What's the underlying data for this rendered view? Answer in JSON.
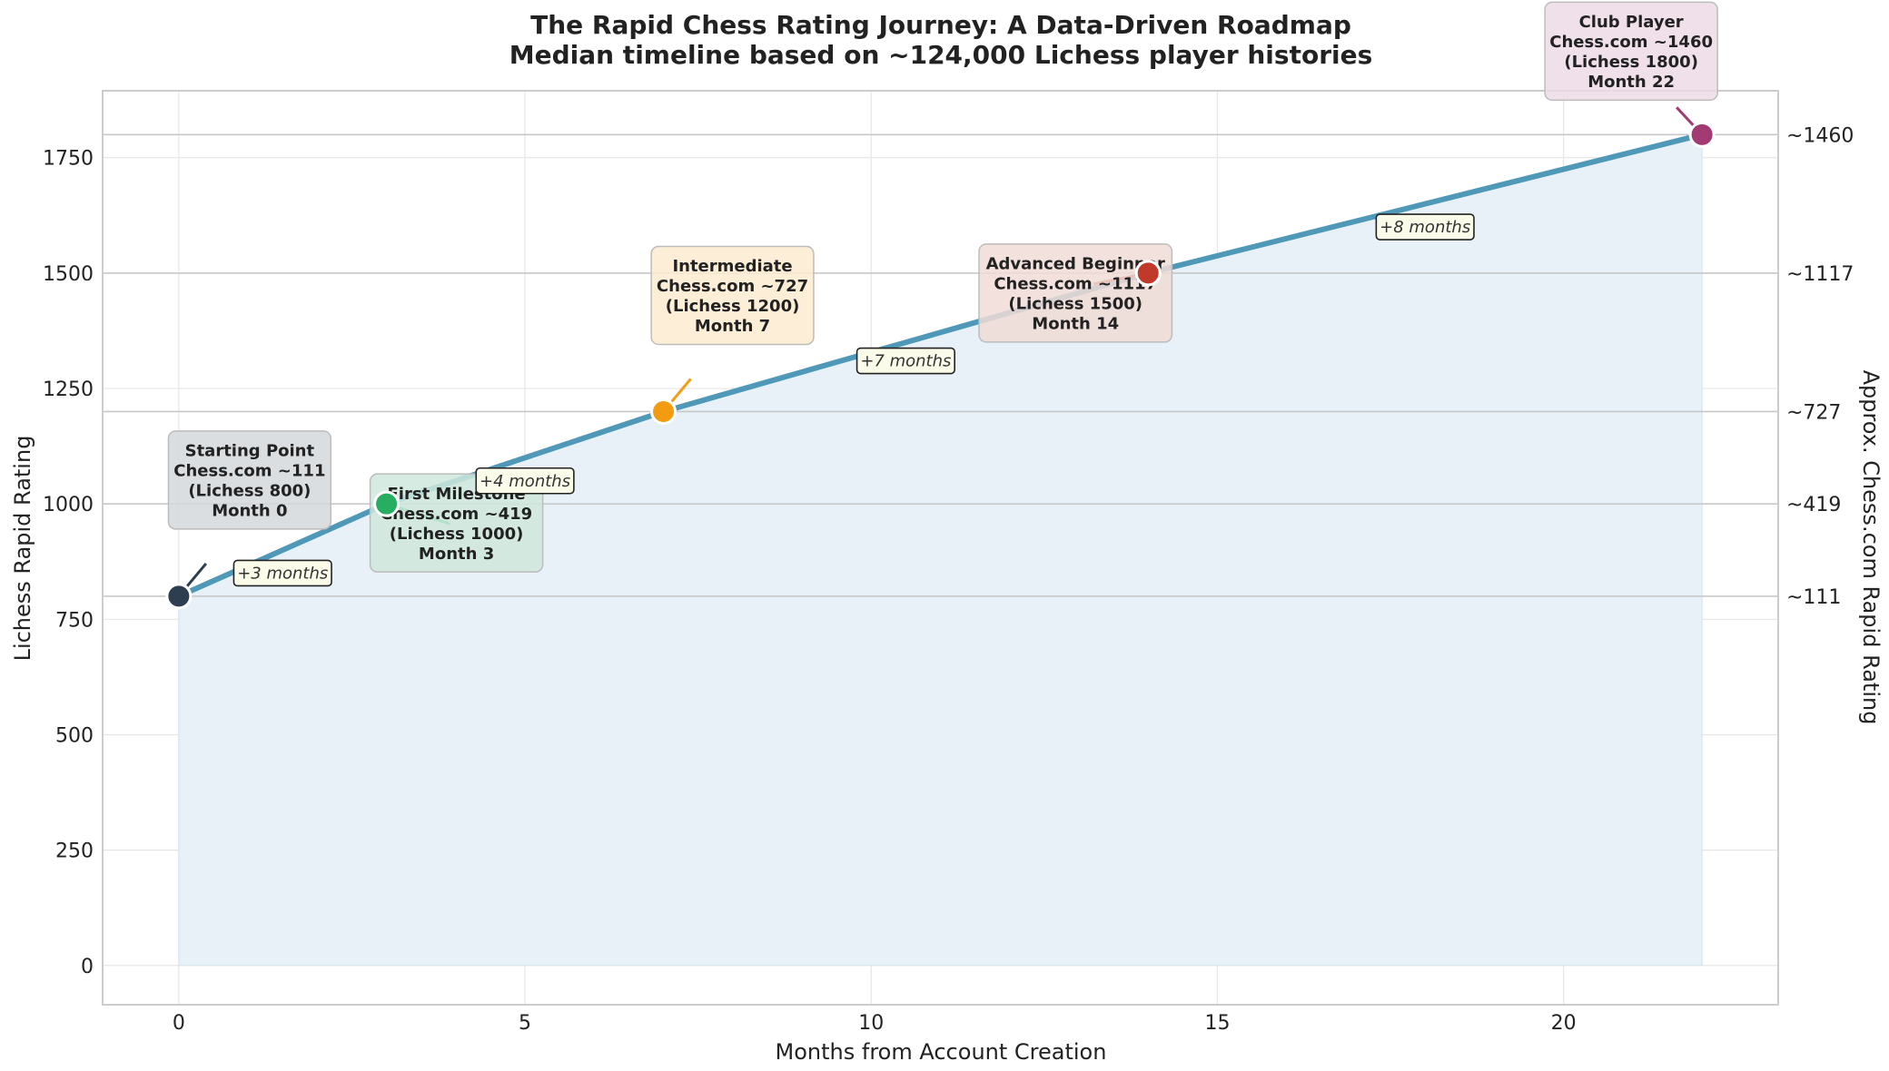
{
  "chart_data": {
    "type": "line",
    "title": "The Rapid Chess Rating Journey: A Data-Driven Roadmap",
    "subtitle": "Median timeline based on ~124,000 Lichess player histories",
    "xlabel": "Months from Account Creation",
    "ylabel": "Lichess Rapid Rating",
    "y2label": "Approx. Chess.com Rapid Rating",
    "xlim": [
      -1.1,
      23.1
    ],
    "ylim": [
      -85,
      1895
    ],
    "xticks": [
      0,
      5,
      10,
      15,
      20
    ],
    "yticks": [
      0,
      250,
      500,
      750,
      1000,
      1250,
      1500,
      1750
    ],
    "grid": true,
    "fill_under_line": true,
    "line_color": "#4f98b8",
    "fill_color": "#e8f1f7",
    "points": [
      {
        "x": 0,
        "y": 800,
        "color": "#2c3e50",
        "box_color": "#d5d8dc",
        "annotation": [
          "Starting Point",
          "Chess.com ~111",
          "(Lichess 800)",
          "Month 0"
        ]
      },
      {
        "x": 3,
        "y": 1000,
        "color": "#27ae60",
        "box_color": "#cfe8dc",
        "annotation": [
          "First Milestone",
          "Chess.com ~419",
          "(Lichess 1000)",
          "Month 3"
        ]
      },
      {
        "x": 7,
        "y": 1200,
        "color": "#f39c12",
        "box_color": "#fdebd0",
        "annotation": [
          "Intermediate",
          "Chess.com ~727",
          "(Lichess 1200)",
          "Month 7"
        ]
      },
      {
        "x": 14,
        "y": 1500,
        "color": "#c0392b",
        "box_color": "#f0dcd6",
        "annotation": [
          "Advanced Beginner",
          "Chess.com ~1117",
          "(Lichess 1500)",
          "Month 14"
        ]
      },
      {
        "x": 22,
        "y": 1800,
        "color": "#a23b72",
        "box_color": "#ecdbe6",
        "annotation": [
          "Club Player",
          "Chess.com ~1460",
          "(Lichess 1800)",
          "Month 22"
        ]
      }
    ],
    "gap_labels": [
      {
        "text": "+3 months",
        "x": 1.5,
        "y": 850
      },
      {
        "text": "+4 months",
        "x": 5.0,
        "y": 1050
      },
      {
        "text": "+7 months",
        "x": 10.5,
        "y": 1310
      },
      {
        "text": "+8 months",
        "x": 18.0,
        "y": 1600
      }
    ],
    "right_axis": [
      {
        "y": 800,
        "label": "~111"
      },
      {
        "y": 1000,
        "label": "~419"
      },
      {
        "y": 1200,
        "label": "~727"
      },
      {
        "y": 1500,
        "label": "~1117"
      },
      {
        "y": 1800,
        "label": "~1460"
      }
    ]
  }
}
